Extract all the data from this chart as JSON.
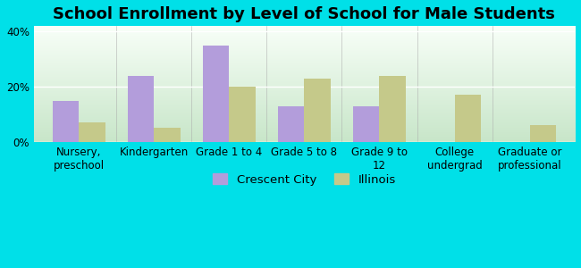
{
  "title": "School Enrollment by Level of School for Male Students",
  "categories": [
    "Nursery,\npreschool",
    "Kindergarten",
    "Grade 1 to 4",
    "Grade 5 to 8",
    "Grade 9 to\n12",
    "College\nundergrad",
    "Graduate or\nprofessional"
  ],
  "crescent_city": [
    15,
    24,
    35,
    13,
    13,
    0,
    0
  ],
  "illinois": [
    7,
    5,
    20,
    23,
    24,
    17,
    6
  ],
  "crescent_city_color": "#b39ddb",
  "illinois_color": "#c5c98a",
  "background_color": "#00e0e8",
  "ylim": [
    0,
    42
  ],
  "yticks": [
    0,
    20,
    40
  ],
  "ytick_labels": [
    "0%",
    "20%",
    "40%"
  ],
  "bar_width": 0.35,
  "legend_labels": [
    "Crescent City",
    "Illinois"
  ],
  "title_fontsize": 13,
  "tick_fontsize": 8.5,
  "grad_bottom_color": "#c8e6c9",
  "grad_top_color": "#f8fff8"
}
